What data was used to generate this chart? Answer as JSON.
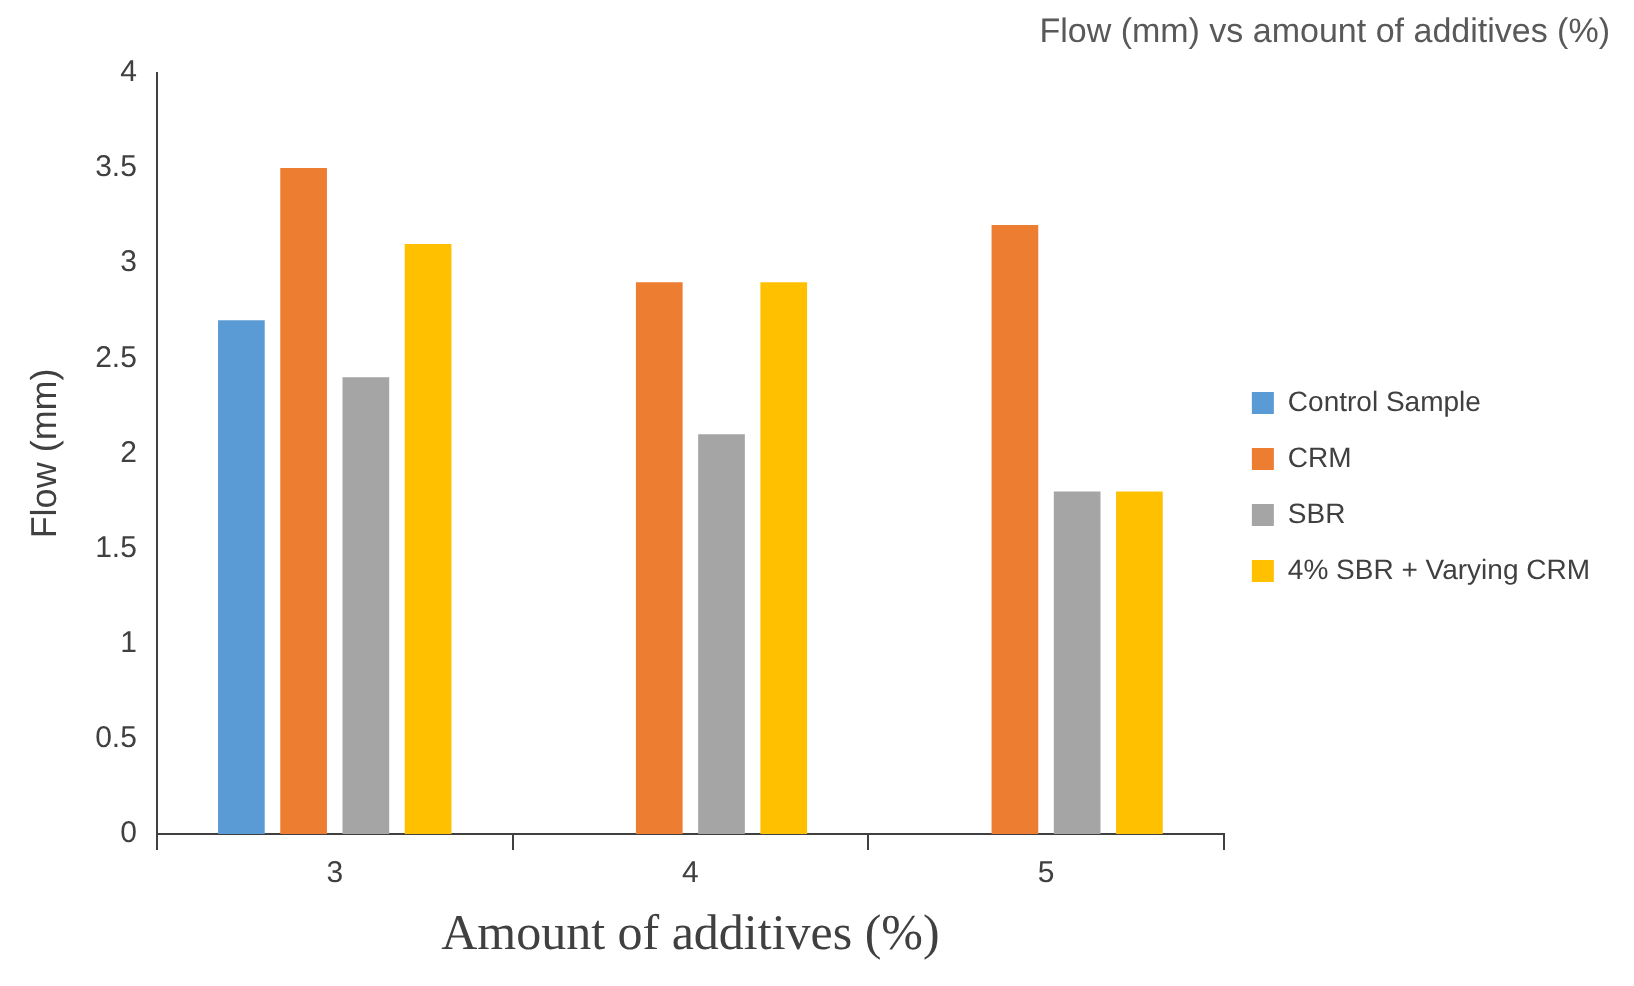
{
  "chart_data": {
    "type": "bar",
    "title": "Flow (mm) vs amount of additives (%)",
    "xlabel": "Amount of additives (%)",
    "ylabel": "Flow (mm)",
    "categories": [
      "3",
      "4",
      "5"
    ],
    "series": [
      {
        "name": "Control Sample",
        "color": "#5b9bd5",
        "values": [
          2.7,
          null,
          null
        ]
      },
      {
        "name": "CRM",
        "color": "#ed7d31",
        "values": [
          3.5,
          2.9,
          3.2
        ]
      },
      {
        "name": "SBR",
        "color": "#a5a5a5",
        "values": [
          2.4,
          2.1,
          1.8
        ]
      },
      {
        "name": "4% SBR + Varying CRM",
        "color": "#ffc000",
        "values": [
          3.1,
          2.9,
          1.8
        ]
      }
    ],
    "ylim": [
      0,
      4
    ],
    "yticks": [
      0,
      0.5,
      1,
      1.5,
      2,
      2.5,
      3,
      3.5,
      4
    ],
    "grid": false,
    "legend": "right"
  }
}
